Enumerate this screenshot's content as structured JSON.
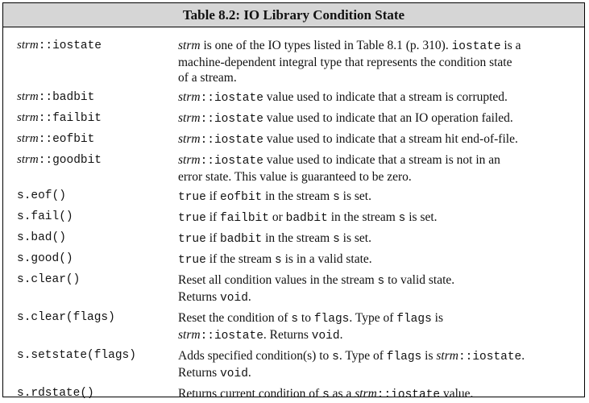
{
  "title": "Table 8.2: IO Library Condition State",
  "rows": [
    {
      "name": {
        "a": "strm",
        "b": "::iostate"
      },
      "desc": {
        "a": "strm",
        "b": " is one of the IO types listed in Table 8.1 (p. 310). ",
        "c": "iostate",
        "d": " is a",
        "e": "machine-dependent integral type that represents the condition state",
        "f": "of a stream."
      }
    },
    {
      "name": {
        "a": "strm",
        "b": "::badbit"
      },
      "desc": {
        "a": "strm",
        "b": "::iostate",
        "c": " value used to indicate that a stream is corrupted."
      }
    },
    {
      "name": {
        "a": "strm",
        "b": "::failbit"
      },
      "desc": {
        "a": "strm",
        "b": "::iostate",
        "c": " value used to indicate that an IO operation failed."
      }
    },
    {
      "name": {
        "a": "strm",
        "b": "::eofbit"
      },
      "desc": {
        "a": "strm",
        "b": "::iostate",
        "c": " value used to indicate that a stream hit end-of-file."
      }
    },
    {
      "name": {
        "a": "strm",
        "b": "::goodbit"
      },
      "desc": {
        "a": "strm",
        "b": "::iostate",
        "c": " value used to indicate that a stream is not in an",
        "d": "error state. This value is guaranteed to be zero."
      }
    },
    {
      "name": "s.eof()",
      "desc": {
        "a": "true",
        "b": " if ",
        "c": "eofbit",
        "d": " in the stream ",
        "e": "s",
        "f": " is set."
      }
    },
    {
      "name": "s.fail()",
      "desc": {
        "a": "true",
        "b": " if ",
        "c": "failbit",
        "d": " or ",
        "e": "badbit",
        "f": " in the stream ",
        "g": "s",
        "h": " is set."
      }
    },
    {
      "name": "s.bad()",
      "desc": {
        "a": "true",
        "b": " if ",
        "c": "badbit",
        "d": " in the stream ",
        "e": "s",
        "f": " is set."
      }
    },
    {
      "name": "s.good()",
      "desc": {
        "a": "true",
        "b": " if the stream ",
        "c": "s",
        "d": " is in a valid state."
      }
    },
    {
      "name": "s.clear()",
      "desc": {
        "a": "Reset all condition values in the stream ",
        "b": "s",
        "c": " to valid state.",
        "d": "Returns ",
        "e": "void",
        "f": "."
      }
    },
    {
      "name": "s.clear(flags)",
      "desc": {
        "a": "Reset the condition of ",
        "b": "s",
        "c": " to ",
        "d": "flags",
        "e": ". Type of ",
        "f": "flags",
        "g": " is",
        "h": "strm",
        "i": "::iostate",
        "j": ". Returns ",
        "k": "void",
        "l": "."
      }
    },
    {
      "name": "s.setstate(flags)",
      "desc": {
        "a": "Adds specified condition(s) to ",
        "b": "s",
        "c": ". Type of ",
        "d": "flags",
        "e": " is ",
        "f": "strm",
        "g": "::iostate",
        "h": ".",
        "i": "Returns ",
        "j": "void",
        "k": "."
      }
    },
    {
      "name": "s.rdstate()",
      "desc": {
        "a": "Returns current condition of ",
        "b": "s",
        "c": " as a ",
        "d": "strm",
        "e": "::iostate",
        "f": " value."
      }
    }
  ]
}
